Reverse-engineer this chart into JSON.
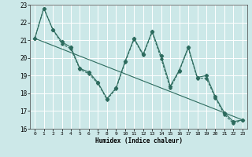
{
  "title": "",
  "xlabel": "Humidex (Indice chaleur)",
  "xlim": [
    -0.5,
    23.5
  ],
  "ylim": [
    16,
    23
  ],
  "yticks": [
    16,
    17,
    18,
    19,
    20,
    21,
    22,
    23
  ],
  "xticks": [
    0,
    1,
    2,
    3,
    4,
    5,
    6,
    7,
    8,
    9,
    10,
    11,
    12,
    13,
    14,
    15,
    16,
    17,
    18,
    19,
    20,
    21,
    22,
    23
  ],
  "bg_color": "#cce8e8",
  "grid_color": "#ffffff",
  "line_color": "#2d6b5e",
  "line1_x": [
    0,
    1,
    2,
    3,
    4,
    5,
    6,
    7,
    8,
    9,
    10,
    11,
    12,
    13,
    14,
    15,
    16,
    17,
    18,
    19,
    20,
    21,
    22,
    23
  ],
  "line1_y": [
    21.1,
    22.8,
    21.6,
    20.9,
    20.6,
    19.4,
    19.2,
    18.6,
    17.7,
    18.3,
    19.8,
    21.1,
    20.2,
    21.5,
    20.1,
    18.4,
    19.3,
    20.6,
    18.9,
    19.0,
    17.8,
    16.9,
    16.4,
    16.5
  ],
  "line2_x": [
    0,
    1,
    2,
    3,
    4,
    5,
    6,
    7,
    8,
    9,
    10,
    11,
    12,
    13,
    14,
    15,
    16,
    17,
    18,
    19,
    20,
    21,
    22,
    23
  ],
  "line2_y": [
    21.1,
    22.8,
    21.6,
    20.8,
    20.5,
    19.35,
    19.1,
    18.55,
    17.65,
    18.25,
    19.75,
    21.05,
    20.15,
    21.45,
    19.95,
    18.3,
    19.25,
    20.55,
    18.85,
    18.85,
    17.75,
    16.8,
    16.3,
    16.5
  ],
  "trend_x": [
    0,
    23
  ],
  "trend_y": [
    21.1,
    16.5
  ]
}
